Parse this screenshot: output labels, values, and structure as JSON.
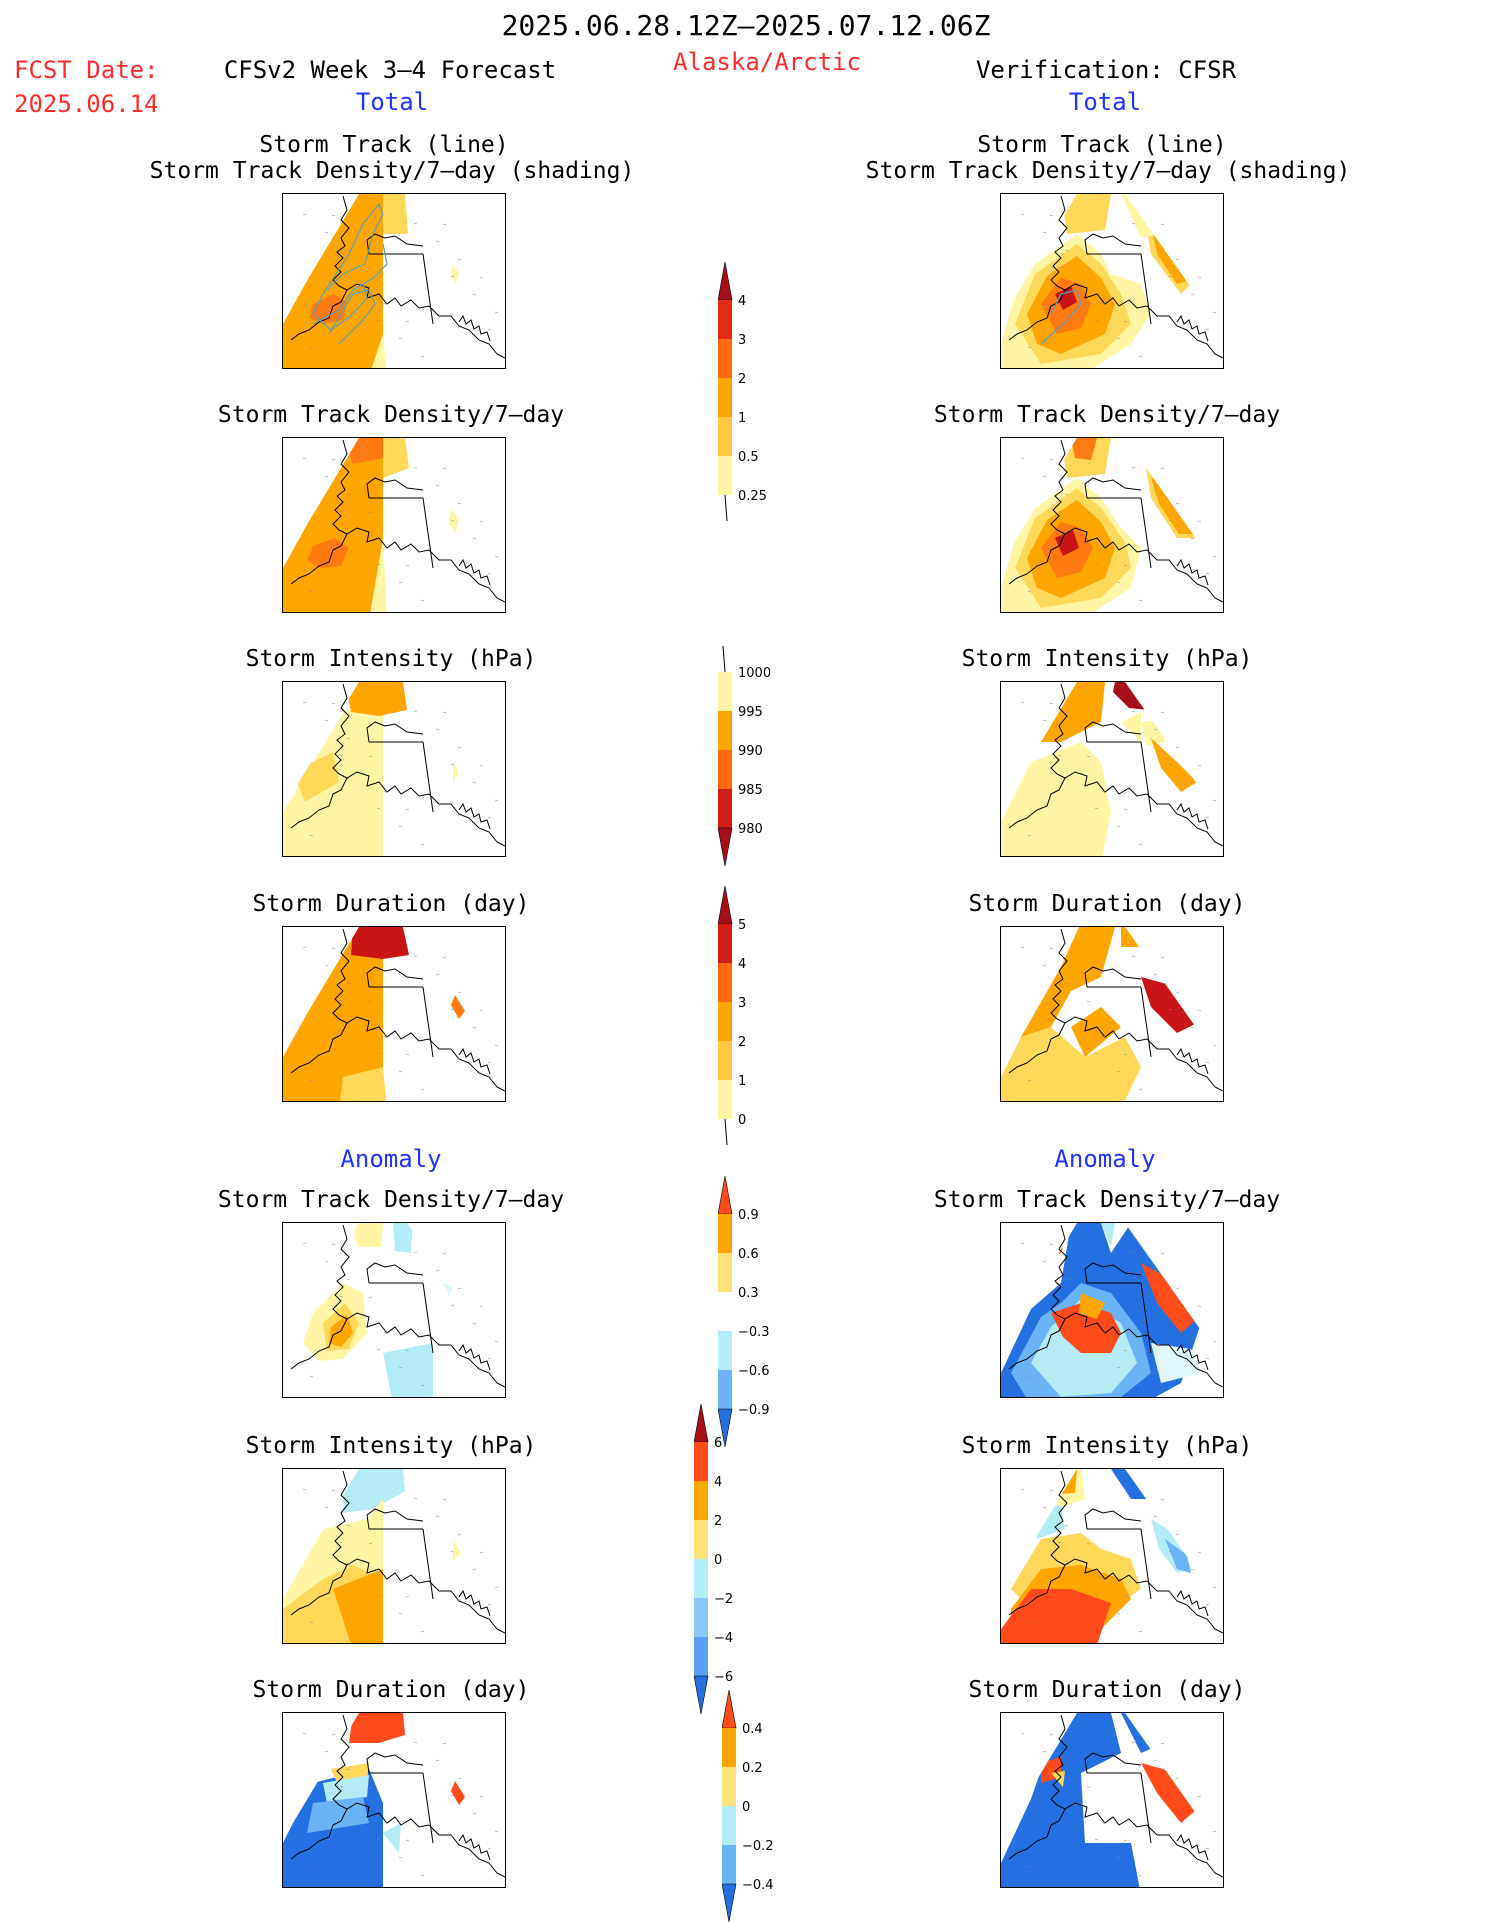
{
  "header": {
    "date_range": "2025.06.28.12Z–2025.07.12.06Z",
    "fcst_label": "FCST Date:",
    "fcst_date": "2025.06.14",
    "model": "CFSv2 Week 3–4 Forecast",
    "region": "Alaska/Arctic",
    "verification": "Verification: CFSR",
    "total_left": "Total",
    "total_right": "Total",
    "anomaly_left": "Anomaly",
    "anomaly_right": "Anomaly"
  },
  "panel_titles": {
    "track_line": "Storm Track (line)",
    "track_shading": "Storm Track Density/7–day (shading)",
    "density": "Storm Track Density/7–day",
    "intensity": "Storm Intensity (hPa)",
    "duration": "Storm Duration (day)"
  },
  "colorbars": {
    "density": {
      "labels": [
        "4",
        "3",
        "2",
        "1",
        "0.5",
        "0.25"
      ],
      "colors": [
        "#a50f15",
        "#e62a14",
        "#ff6a10",
        "#ffa500",
        "#ffc845",
        "#fff5a5"
      ]
    },
    "intensity": {
      "labels": [
        "1000",
        "995",
        "990",
        "985",
        "980"
      ],
      "colors": [
        "#fff5a5",
        "#ffa500",
        "#ff6a10",
        "#d41b14",
        "#a50f15"
      ]
    },
    "duration": {
      "labels": [
        "5",
        "4",
        "3",
        "2",
        "1",
        "0"
      ],
      "colors": [
        "#a50f15",
        "#d41b14",
        "#ff6a10",
        "#ffa500",
        "#ffc845",
        "#fff5a5"
      ]
    },
    "anom_density": {
      "labels": [
        "0.9",
        "0.6",
        "0.3",
        "−0.3",
        "−0.6",
        "−0.9"
      ],
      "colors": [
        "#ff4a1a",
        "#ffa500",
        "#ffe27a",
        "#ffffff",
        "#b4ecf5",
        "#6ab4f5",
        "#2470e0"
      ]
    },
    "anom_intensity": {
      "labels": [
        "6",
        "4",
        "2",
        "0",
        "−2",
        "−4",
        "−6"
      ],
      "colors": [
        "#a50f15",
        "#ff4a1a",
        "#ffa500",
        "#ffe27a",
        "#b4ecf5",
        "#8cc8f5",
        "#5aa0f0",
        "#2470e0"
      ]
    },
    "anom_duration": {
      "labels": [
        "0.4",
        "0.2",
        "0",
        "−0.2",
        "−0.4"
      ],
      "colors": [
        "#ff4a1a",
        "#ffa500",
        "#ffe27a",
        "#b4ecf5",
        "#6ab4f5",
        "#2470e0"
      ]
    }
  },
  "palette": {
    "land_outline": "#000000",
    "track_line": "#5aa0b4"
  }
}
